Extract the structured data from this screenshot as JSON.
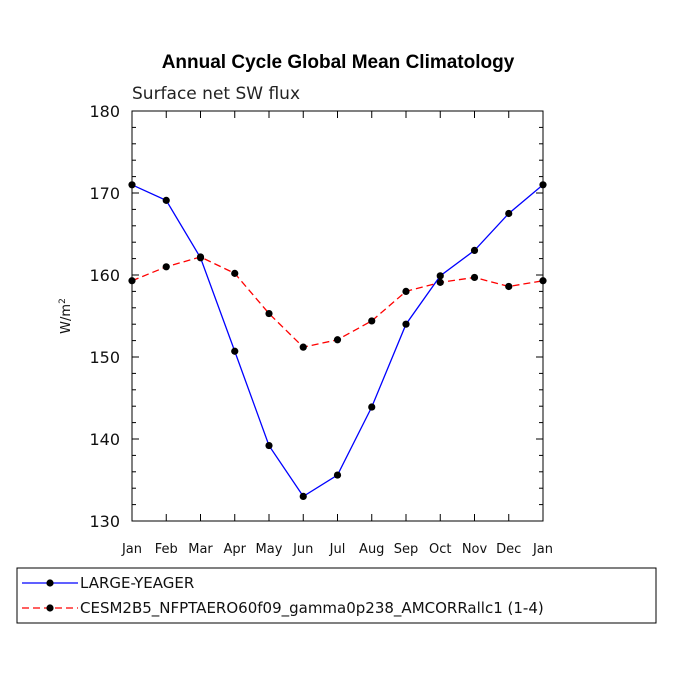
{
  "chart_data": {
    "type": "line",
    "title": "Annual Cycle Global Mean Climatology",
    "subtitle": "Surface net SW flux",
    "ylabel": "W/m",
    "ylabel_sup": "2",
    "xlabel": "",
    "categories": [
      "Jan",
      "Feb",
      "Mar",
      "Apr",
      "May",
      "Jun",
      "Jul",
      "Aug",
      "Sep",
      "Oct",
      "Nov",
      "Dec",
      "Jan"
    ],
    "ylim": [
      130,
      180
    ],
    "yticks": [
      130,
      140,
      150,
      160,
      170,
      180
    ],
    "series": [
      {
        "name": "LARGE-YEAGER",
        "color": "#0000ff",
        "dash": "solid",
        "values": [
          171.0,
          169.1,
          162.1,
          150.7,
          139.2,
          133.0,
          135.6,
          143.9,
          154.0,
          159.9,
          163.0,
          167.5,
          171.0
        ]
      },
      {
        "name": "CESM2B5_NFPTAERO60f09_gamma0p238_AMCORRallc1 (1-4)",
        "color": "#ff0000",
        "dash": "dashed",
        "values": [
          159.3,
          161.0,
          162.2,
          160.2,
          155.3,
          151.2,
          152.1,
          154.4,
          158.0,
          159.1,
          159.7,
          158.6,
          159.3
        ]
      }
    ],
    "legend_position": "bottom"
  }
}
